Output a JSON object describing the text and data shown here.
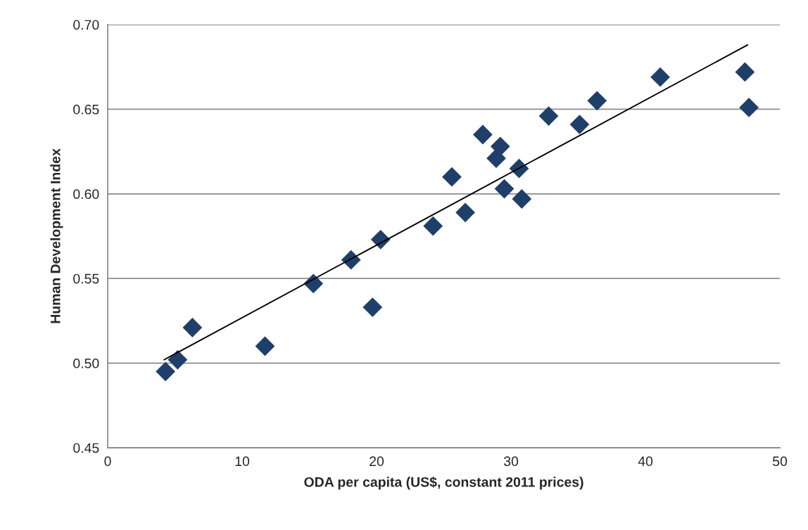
{
  "chart_data": {
    "type": "scatter",
    "xlabel": "ODA per capita (US$, constant 2011 prices)",
    "ylabel": "Human Development Index",
    "xlim": [
      0,
      50
    ],
    "xticks": [
      0,
      10,
      20,
      30,
      40,
      50
    ],
    "ylim": [
      0.45,
      0.7
    ],
    "yticks": [
      {
        "value": 0.45,
        "label": "0.45"
      },
      {
        "value": 0.5,
        "label": "0.50"
      },
      {
        "value": 0.55,
        "label": "0.55"
      },
      {
        "value": 0.6,
        "label": "0.60"
      },
      {
        "value": 0.65,
        "label": "0.65"
      },
      {
        "value": 0.7,
        "label": "0.70"
      }
    ],
    "grid": "y",
    "marker": "diamond",
    "series": [
      {
        "color": "#1f3f6b",
        "x": [
          4.3,
          5.2,
          6.3,
          11.7,
          15.3,
          18.1,
          19.7,
          20.3,
          24.2,
          25.6,
          26.6,
          27.9,
          28.9,
          29.2,
          29.5,
          30.6,
          30.8,
          32.8,
          35.1,
          36.4,
          41.1,
          47.4,
          47.7
        ],
        "values": [
          0.495,
          0.502,
          0.521,
          0.51,
          0.547,
          0.561,
          0.533,
          0.573,
          0.581,
          0.61,
          0.589,
          0.635,
          0.621,
          0.628,
          0.603,
          0.615,
          0.597,
          0.646,
          0.641,
          0.655,
          0.669,
          0.672,
          0.651
        ]
      },
      {
        "type": "line",
        "color": "#000000",
        "marker": "none",
        "x": [
          4.2,
          47.6
        ],
        "values": [
          0.502,
          0.688
        ]
      }
    ]
  }
}
